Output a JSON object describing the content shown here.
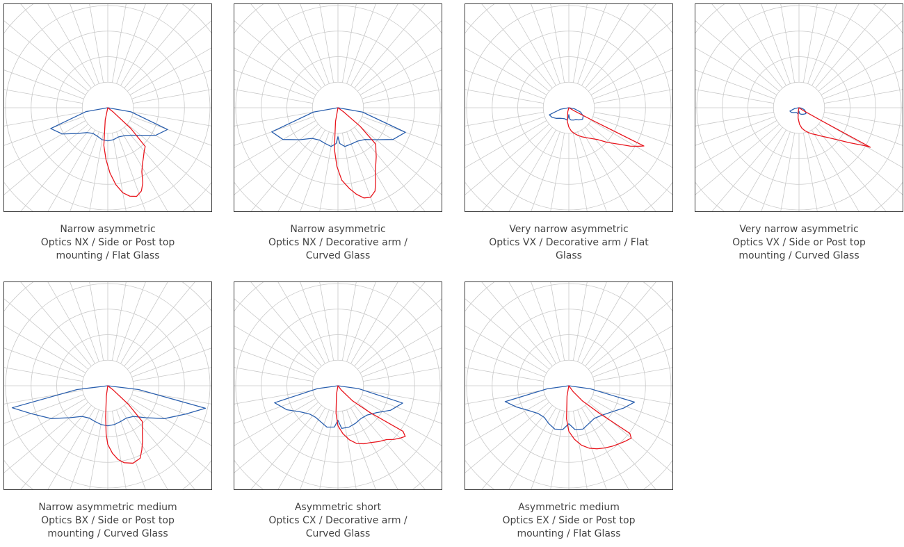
{
  "colors": {
    "series_a": "#2a5fae",
    "series_b": "#e8141c",
    "grid": "#c8c8c8",
    "frame": "#3a3a3a",
    "text": "#444444"
  },
  "diagrams": [
    {
      "caption": [
        "Narrow asymmetric",
        "Optics NX / Side or Post top",
        "mounting / Flat Glass"
      ],
      "blue": [
        [
          -80,
          0.32
        ],
        [
          -70,
          0.88
        ],
        [
          -60,
          0.76
        ],
        [
          -50,
          0.58
        ],
        [
          -40,
          0.47
        ],
        [
          -30,
          0.43
        ],
        [
          -20,
          0.44
        ],
        [
          -10,
          0.47
        ],
        [
          0,
          0.48
        ],
        [
          10,
          0.47
        ],
        [
          20,
          0.45
        ],
        [
          30,
          0.47
        ],
        [
          40,
          0.52
        ],
        [
          50,
          0.62
        ],
        [
          60,
          0.8
        ],
        [
          70,
          0.92
        ],
        [
          80,
          0.34
        ]
      ],
      "red": [
        [
          -12,
          0.18
        ],
        [
          -6,
          0.55
        ],
        [
          -2,
          0.75
        ],
        [
          2,
          0.95
        ],
        [
          6,
          1.12
        ],
        [
          10,
          1.25
        ],
        [
          14,
          1.32
        ],
        [
          18,
          1.35
        ],
        [
          22,
          1.3
        ],
        [
          25,
          1.2
        ],
        [
          28,
          1.05
        ],
        [
          32,
          0.95
        ],
        [
          36,
          0.88
        ],
        [
          40,
          0.82
        ],
        [
          44,
          0.78
        ],
        [
          48,
          0.45
        ],
        [
          52,
          0.1
        ]
      ]
    },
    {
      "caption": [
        "Narrow asymmetric",
        "Optics NX / Decorative arm /",
        "Curved Glass"
      ],
      "blue": [
        [
          -80,
          0.36
        ],
        [
          -70,
          1.02
        ],
        [
          -60,
          0.92
        ],
        [
          -50,
          0.72
        ],
        [
          -40,
          0.58
        ],
        [
          -30,
          0.54
        ],
        [
          -20,
          0.55
        ],
        [
          -10,
          0.57
        ],
        [
          -3,
          0.52
        ],
        [
          0,
          0.42
        ],
        [
          3,
          0.52
        ],
        [
          10,
          0.57
        ],
        [
          20,
          0.56
        ],
        [
          30,
          0.56
        ],
        [
          40,
          0.6
        ],
        [
          50,
          0.72
        ],
        [
          60,
          0.92
        ],
        [
          70,
          1.04
        ],
        [
          80,
          0.36
        ]
      ],
      "red": [
        [
          -10,
          0.2
        ],
        [
          -5,
          0.6
        ],
        [
          -1,
          0.85
        ],
        [
          3,
          1.05
        ],
        [
          8,
          1.18
        ],
        [
          12,
          1.28
        ],
        [
          16,
          1.36
        ],
        [
          20,
          1.38
        ],
        [
          24,
          1.32
        ],
        [
          27,
          1.2
        ],
        [
          30,
          1.08
        ],
        [
          34,
          0.98
        ],
        [
          38,
          0.9
        ],
        [
          42,
          0.82
        ],
        [
          46,
          0.76
        ],
        [
          50,
          0.42
        ],
        [
          54,
          0.1
        ]
      ]
    },
    {
      "caption": [
        "Very narrow asymmetric",
        "Optics VX / Decorative arm / Flat",
        "Glass"
      ],
      "blue": [
        [
          -80,
          0.12
        ],
        [
          -70,
          0.3
        ],
        [
          -60,
          0.28
        ],
        [
          -50,
          0.24
        ],
        [
          -40,
          0.2
        ],
        [
          -30,
          0.18
        ],
        [
          -20,
          0.17
        ],
        [
          -10,
          0.18
        ],
        [
          -4,
          0.15
        ],
        [
          0,
          0.1
        ],
        [
          4,
          0.16
        ],
        [
          10,
          0.18
        ],
        [
          20,
          0.19
        ],
        [
          30,
          0.2
        ],
        [
          40,
          0.23
        ],
        [
          50,
          0.26
        ],
        [
          60,
          0.24
        ],
        [
          70,
          0.18
        ],
        [
          80,
          0.08
        ]
      ],
      "red": [
        [
          -14,
          0.06
        ],
        [
          -6,
          0.2
        ],
        [
          0,
          0.28
        ],
        [
          6,
          0.34
        ],
        [
          12,
          0.38
        ],
        [
          18,
          0.42
        ],
        [
          24,
          0.46
        ],
        [
          30,
          0.5
        ],
        [
          36,
          0.55
        ],
        [
          42,
          0.62
        ],
        [
          48,
          0.75
        ],
        [
          54,
          0.9
        ],
        [
          58,
          1.05
        ],
        [
          61,
          1.15
        ],
        [
          63,
          1.22
        ],
        [
          62,
          0.4
        ],
        [
          60,
          0.1
        ]
      ]
    },
    {
      "caption": [
        "Very narrow asymmetric",
        "Optics VX / Side or Post top",
        "mounting / Curved Glass"
      ],
      "blue": [
        [
          -80,
          0.06
        ],
        [
          -70,
          0.14
        ],
        [
          -60,
          0.13
        ],
        [
          -50,
          0.11
        ],
        [
          -40,
          0.09
        ],
        [
          -30,
          0.08
        ],
        [
          -20,
          0.08
        ],
        [
          -10,
          0.09
        ],
        [
          -4,
          0.07
        ],
        [
          0,
          0.05
        ],
        [
          4,
          0.08
        ],
        [
          10,
          0.09
        ],
        [
          20,
          0.1
        ],
        [
          30,
          0.11
        ],
        [
          40,
          0.12
        ],
        [
          50,
          0.13
        ],
        [
          60,
          0.11
        ],
        [
          70,
          0.08
        ],
        [
          80,
          0.04
        ]
      ],
      "red": [
        [
          -12,
          0.05
        ],
        [
          -5,
          0.15
        ],
        [
          2,
          0.24
        ],
        [
          8,
          0.3
        ],
        [
          14,
          0.34
        ],
        [
          20,
          0.38
        ],
        [
          26,
          0.42
        ],
        [
          32,
          0.46
        ],
        [
          38,
          0.52
        ],
        [
          44,
          0.6
        ],
        [
          50,
          0.72
        ],
        [
          55,
          0.88
        ],
        [
          58,
          1.0
        ],
        [
          60,
          1.1
        ],
        [
          61,
          1.18
        ],
        [
          60,
          0.35
        ],
        [
          57,
          0.08
        ]
      ]
    },
    {
      "caption": [
        "Narrow asymmetric medium",
        "Optics BX / Side or Post top",
        "mounting / Curved Glass"
      ],
      "blue": [
        [
          -83,
          0.45
        ],
        [
          -77,
          1.42
        ],
        [
          -70,
          1.18
        ],
        [
          -60,
          0.95
        ],
        [
          -50,
          0.72
        ],
        [
          -40,
          0.58
        ],
        [
          -30,
          0.54
        ],
        [
          -20,
          0.55
        ],
        [
          -10,
          0.57
        ],
        [
          0,
          0.58
        ],
        [
          10,
          0.57
        ],
        [
          20,
          0.55
        ],
        [
          30,
          0.54
        ],
        [
          40,
          0.58
        ],
        [
          50,
          0.72
        ],
        [
          60,
          0.95
        ],
        [
          70,
          1.2
        ],
        [
          77,
          1.45
        ],
        [
          83,
          0.45
        ]
      ],
      "red": [
        [
          -8,
          0.15
        ],
        [
          -4,
          0.45
        ],
        [
          -2,
          0.7
        ],
        [
          0,
          0.85
        ],
        [
          4,
          0.98
        ],
        [
          8,
          1.08
        ],
        [
          12,
          1.14
        ],
        [
          18,
          1.18
        ],
        [
          24,
          1.15
        ],
        [
          28,
          1.05
        ],
        [
          32,
          0.95
        ],
        [
          36,
          0.85
        ],
        [
          40,
          0.78
        ],
        [
          44,
          0.72
        ],
        [
          48,
          0.4
        ],
        [
          52,
          0.1
        ]
      ]
    },
    {
      "caption": [
        "Asymmetric short",
        "Optics CX / Decorative arm /",
        "Curved Glass"
      ],
      "blue": [
        [
          -82,
          0.3
        ],
        [
          -75,
          0.95
        ],
        [
          -65,
          0.82
        ],
        [
          -55,
          0.66
        ],
        [
          -45,
          0.58
        ],
        [
          -35,
          0.56
        ],
        [
          -25,
          0.58
        ],
        [
          -15,
          0.62
        ],
        [
          -5,
          0.6
        ],
        [
          0,
          0.5
        ],
        [
          5,
          0.62
        ],
        [
          15,
          0.62
        ],
        [
          25,
          0.6
        ],
        [
          35,
          0.58
        ],
        [
          45,
          0.6
        ],
        [
          55,
          0.68
        ],
        [
          65,
          0.84
        ],
        [
          75,
          0.97
        ],
        [
          82,
          0.3
        ]
      ],
      "red": [
        [
          -10,
          0.12
        ],
        [
          -4,
          0.4
        ],
        [
          0,
          0.58
        ],
        [
          6,
          0.7
        ],
        [
          12,
          0.8
        ],
        [
          18,
          0.88
        ],
        [
          24,
          0.92
        ],
        [
          30,
          0.95
        ],
        [
          36,
          1.0
        ],
        [
          42,
          1.05
        ],
        [
          46,
          1.12
        ],
        [
          50,
          1.18
        ],
        [
          53,
          1.22
        ],
        [
          55,
          1.15
        ],
        [
          50,
          0.6
        ],
        [
          44,
          0.3
        ],
        [
          38,
          0.08
        ]
      ]
    },
    {
      "caption": [
        "Asymmetric medium",
        "Optics EX / Side or Post top",
        "mounting / Flat Glass"
      ],
      "blue": [
        [
          -82,
          0.32
        ],
        [
          -76,
          0.95
        ],
        [
          -68,
          0.82
        ],
        [
          -58,
          0.68
        ],
        [
          -48,
          0.6
        ],
        [
          -38,
          0.58
        ],
        [
          -28,
          0.62
        ],
        [
          -18,
          0.66
        ],
        [
          -8,
          0.64
        ],
        [
          0,
          0.55
        ],
        [
          8,
          0.64
        ],
        [
          18,
          0.66
        ],
        [
          28,
          0.62
        ],
        [
          38,
          0.6
        ],
        [
          48,
          0.64
        ],
        [
          58,
          0.72
        ],
        [
          68,
          0.86
        ],
        [
          76,
          0.98
        ],
        [
          82,
          0.32
        ]
      ],
      "red": [
        [
          -10,
          0.15
        ],
        [
          -4,
          0.48
        ],
        [
          0,
          0.66
        ],
        [
          6,
          0.78
        ],
        [
          12,
          0.88
        ],
        [
          18,
          0.95
        ],
        [
          24,
          1.0
        ],
        [
          30,
          1.04
        ],
        [
          36,
          1.08
        ],
        [
          42,
          1.12
        ],
        [
          46,
          1.15
        ],
        [
          50,
          1.18
        ],
        [
          52,
          1.12
        ],
        [
          48,
          0.6
        ],
        [
          42,
          0.3
        ],
        [
          36,
          0.1
        ]
      ]
    }
  ]
}
